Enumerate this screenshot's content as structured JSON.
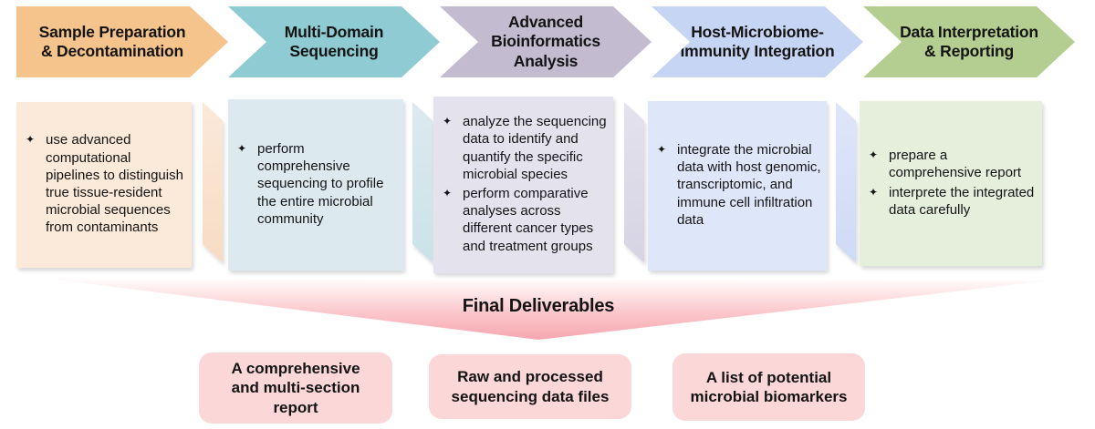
{
  "bullet_glyph": "✦",
  "stages": [
    {
      "label": "Sample Preparation\n& Decontamination",
      "arrow_color": "#F5C48C",
      "box_color": "#FBE9DA",
      "fold_color": "#F7DCC4",
      "bullets": [
        "use advanced computational pipelines to distinguish true tissue-resident microbial sequences from contaminants"
      ]
    },
    {
      "label": "Multi-Domain\nSequencing",
      "arrow_color": "#8ECBD2",
      "box_color": "#DCEAEF",
      "fold_color": "#CBE2E9",
      "bullets": [
        "perform comprehensive sequencing to profile the entire microbial community"
      ]
    },
    {
      "label": "Advanced\nBioinformatics\nAnalysis",
      "arrow_color": "#C3BCD1",
      "box_color": "#E4E2ED",
      "fold_color": "#D6D3E4",
      "bullets": [
        "analyze the sequencing data to identify and quantify the specific microbial species",
        "perform comparative analyses across different cancer types and treatment groups"
      ]
    },
    {
      "label": "Host-Microbiome-\nImmunity Integration",
      "arrow_color": "#C7D5F4",
      "box_color": "#DEE6F9",
      "fold_color": "#CEDBF5",
      "bullets": [
        "integrate the microbial data with host genomic, transcriptomic, and immune cell infiltration data"
      ]
    },
    {
      "label": "Data Interpretation\n& Reporting",
      "arrow_color": "#B3CE90",
      "box_color": "#E6EEDC",
      "fold_color": null,
      "bullets": [
        "prepare a comprehensive report",
        "interprete the integrated data carefully"
      ]
    }
  ],
  "deliverables": {
    "title": "Final Deliverables",
    "banner_color_top": "#FFFFFF",
    "banner_color_bottom": "#F7A8B0",
    "item_box_color": "#FBD7D7",
    "items": [
      "A comprehensive\nand multi-section\nreport",
      "Raw and processed\nsequencing data files",
      "A list of potential\nmicrobial biomarkers"
    ]
  }
}
